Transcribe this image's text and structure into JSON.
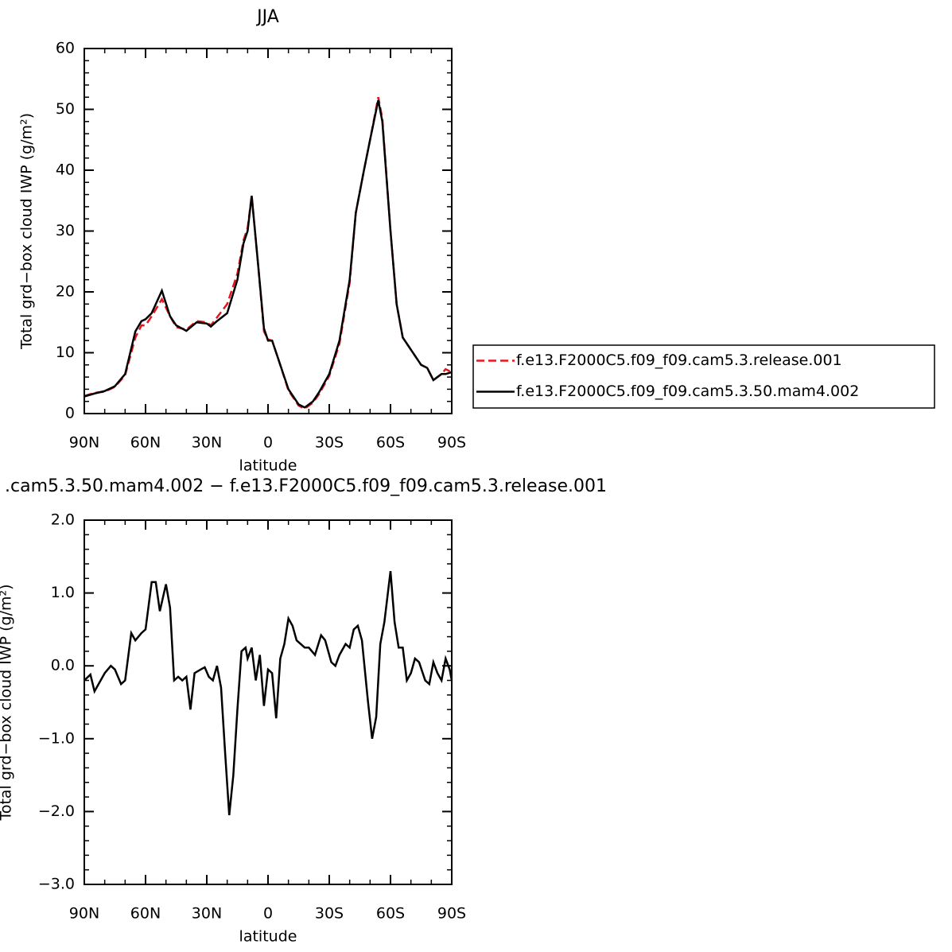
{
  "chart_data": [
    {
      "type": "line",
      "title": "JJA",
      "xlabel": "latitude",
      "ylabel": "Total grd−box cloud IWP (g/m²)",
      "xlim": [
        90,
        -90
      ],
      "ylim": [
        0,
        60
      ],
      "xticks": [
        {
          "value": 90,
          "label": "90N"
        },
        {
          "value": 60,
          "label": "60N"
        },
        {
          "value": 30,
          "label": "30N"
        },
        0,
        {
          "value": -30,
          "label": "30S"
        },
        {
          "value": -60,
          "label": "60S"
        },
        {
          "value": -90,
          "label": "90S"
        }
      ],
      "yticks": [
        0,
        10,
        20,
        30,
        40,
        50,
        60
      ],
      "legend": "right",
      "x": [
        90,
        85,
        80,
        75,
        70,
        65,
        62,
        60,
        57,
        52,
        48,
        45,
        40,
        35,
        30,
        28,
        25,
        20,
        15,
        12,
        10,
        8,
        5,
        2,
        0,
        -2,
        -5,
        -10,
        -15,
        -18,
        -22,
        -25,
        -30,
        -35,
        -40,
        -43,
        -47,
        -50,
        -54,
        -56,
        -60,
        -63,
        -66,
        -70,
        -75,
        -78,
        -81,
        -85,
        -87,
        -90
      ],
      "series": [
        {
          "name": "f.e13.F2000C5.f09_f09.cam5.3.release.001",
          "color": "#e8141c",
          "dashed": true,
          "values": [
            2.9,
            3.4,
            3.6,
            4.4,
            6.3,
            12.5,
            14.5,
            14.5,
            16,
            18.8,
            16,
            14.2,
            13.8,
            15.2,
            15,
            14.5,
            15.8,
            18,
            23,
            28.5,
            30.5,
            35.8,
            25,
            13.5,
            12.2,
            12,
            9,
            3.8,
            1.3,
            0.8,
            1.8,
            3.2,
            6.2,
            11.5,
            21.5,
            33,
            40,
            45,
            52,
            48.5,
            30,
            18,
            12.5,
            10.5,
            8,
            7.5,
            5.5,
            6.5,
            7.3,
            6.8
          ]
        },
        {
          "name": "f.e13.F2000C5.f09_f09.cam5.3.50.mam4.002",
          "color": "#000000",
          "dashed": false,
          "values": [
            2.8,
            3.3,
            3.7,
            4.5,
            6.5,
            13.5,
            15.2,
            15.5,
            16.5,
            20.2,
            16,
            14.5,
            13.6,
            15,
            14.8,
            14.3,
            15.2,
            16.5,
            22,
            28,
            30,
            35.8,
            25,
            14,
            12,
            12,
            9,
            4,
            1.5,
            1,
            2,
            3.5,
            6.5,
            12,
            22,
            33,
            40,
            45,
            51.5,
            48,
            30,
            18,
            12.5,
            10.5,
            8,
            7.5,
            5.5,
            6.5,
            6.5,
            6.8
          ]
        }
      ]
    },
    {
      "type": "line",
      "title": ".cam5.3.50.mam4.002 − f.e13.F2000C5.f09_f09.cam5.3.release.001",
      "xlabel": "latitude",
      "ylabel": "Total grd−box cloud IWP (g/m²)",
      "xlim": [
        90,
        -90
      ],
      "ylim": [
        -3,
        2
      ],
      "xticks": [
        {
          "value": 90,
          "label": "90N"
        },
        {
          "value": 60,
          "label": "60N"
        },
        {
          "value": 30,
          "label": "30N"
        },
        0,
        {
          "value": -30,
          "label": "30S"
        },
        {
          "value": -60,
          "label": "60S"
        },
        {
          "value": -90,
          "label": "90S"
        }
      ],
      "yticks": [
        {
          "value": -3,
          "label": "−3.0"
        },
        {
          "value": -2,
          "label": "−2.0"
        },
        {
          "value": -1,
          "label": "−1.0"
        },
        {
          "value": 0,
          "label": "0.0"
        },
        {
          "value": 1,
          "label": "1.0"
        },
        {
          "value": 2,
          "label": "2.0"
        }
      ],
      "x": [
        90,
        87,
        85,
        80,
        77,
        75,
        72,
        70,
        67,
        65,
        62,
        60,
        57,
        55,
        53,
        50,
        48,
        46,
        44,
        42,
        40,
        38,
        36,
        33,
        31,
        29,
        27,
        25,
        23,
        21,
        19,
        17,
        15,
        13,
        11,
        10,
        8,
        6,
        4,
        2,
        0,
        -2,
        -4,
        -6,
        -8,
        -10,
        -12,
        -14,
        -18,
        -20,
        -23,
        -26,
        -28,
        -31,
        -33,
        -35,
        -38,
        -40,
        -42,
        -44,
        -46,
        -49,
        -51,
        -53,
        -55,
        -57,
        -60,
        -62,
        -64,
        -66,
        -68,
        -70,
        -72,
        -74,
        -77,
        -79,
        -81,
        -83,
        -85,
        -87,
        -89,
        -90
      ],
      "series": [
        {
          "color": "#000000",
          "dashed": false,
          "values": [
            -0.2,
            -0.12,
            -0.35,
            -0.1,
            0,
            -0.05,
            -0.25,
            -0.2,
            0.45,
            0.35,
            0.45,
            0.5,
            1.15,
            1.15,
            0.75,
            1.12,
            0.8,
            -0.2,
            -0.15,
            -0.2,
            -0.15,
            -0.6,
            -0.1,
            -0.05,
            -0.02,
            -0.15,
            -0.2,
            0,
            -0.3,
            -1.2,
            -2.05,
            -1.5,
            -0.6,
            0.2,
            0.25,
            0.1,
            0.25,
            -0.2,
            0.15,
            -0.55,
            -0.05,
            -0.1,
            -0.72,
            0.1,
            0.3,
            0.65,
            0.55,
            0.35,
            0.25,
            0.25,
            0.15,
            0.42,
            0.35,
            0.05,
            0,
            0.15,
            0.3,
            0.25,
            0.5,
            0.55,
            0.35,
            -0.5,
            -1.0,
            -0.7,
            0.3,
            0.6,
            1.3,
            0.6,
            0.25,
            0.25,
            -0.2,
            -0.1,
            0.1,
            0.05,
            -0.2,
            -0.25,
            0.05,
            -0.1,
            -0.2,
            0.1,
            -0.05,
            -0.2
          ]
        }
      ]
    }
  ]
}
